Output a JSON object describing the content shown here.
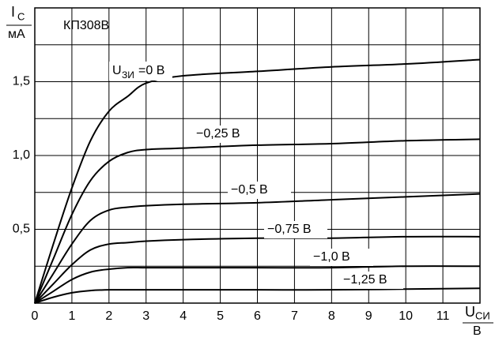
{
  "chart_data": {
    "type": "line",
    "annotation": "КП308В",
    "y_label": {
      "symbol": "I",
      "subscript": "С",
      "unit": "мА"
    },
    "x_label": {
      "symbol": "U",
      "subscript": "СИ",
      "unit": "В"
    },
    "series_label": {
      "symbol": "U",
      "subscript": "ЗИ"
    },
    "x": [
      0,
      0.5,
      1,
      1.5,
      2,
      2.5,
      3,
      4,
      6,
      8,
      10,
      12
    ],
    "series": [
      {
        "name": "=0 В",
        "color": "#000000",
        "values": [
          0,
          0.4,
          0.78,
          1.1,
          1.3,
          1.4,
          1.49,
          1.54,
          1.57,
          1.6,
          1.62,
          1.65
        ]
      },
      {
        "name": "−0,25 В",
        "color": "#000000",
        "values": [
          0,
          0.3,
          0.6,
          0.83,
          0.96,
          1.02,
          1.04,
          1.05,
          1.07,
          1.08,
          1.1,
          1.11
        ]
      },
      {
        "name": "−0,5 В",
        "color": "#000000",
        "values": [
          0,
          0.2,
          0.4,
          0.56,
          0.63,
          0.65,
          0.66,
          0.67,
          0.68,
          0.7,
          0.72,
          0.74
        ]
      },
      {
        "name": "−0,75 В",
        "color": "#000000",
        "values": [
          0,
          0.13,
          0.26,
          0.36,
          0.4,
          0.41,
          0.42,
          0.43,
          0.44,
          0.44,
          0.45,
          0.45
        ]
      },
      {
        "name": "−1,0 В",
        "color": "#000000",
        "values": [
          0,
          0.08,
          0.16,
          0.21,
          0.23,
          0.24,
          0.24,
          0.24,
          0.24,
          0.24,
          0.25,
          0.25
        ]
      },
      {
        "name": "−1,25 В",
        "color": "#000000",
        "values": [
          0,
          0.04,
          0.07,
          0.085,
          0.09,
          0.09,
          0.09,
          0.09,
          0.09,
          0.09,
          0.095,
          0.1
        ]
      }
    ],
    "xlim": [
      0,
      12
    ],
    "xticks": [
      0,
      1,
      2,
      3,
      4,
      5,
      6,
      7,
      8,
      9,
      10,
      11
    ],
    "ylim": [
      0,
      2
    ],
    "yticks": [
      {
        "value": 0.5,
        "label": "0,5"
      },
      {
        "value": 1,
        "label": "1,0"
      },
      {
        "value": 1.5,
        "label": "1,5"
      }
    ],
    "yminor": [
      0.25,
      0.75,
      1.25,
      1.75
    ],
    "grid": true
  }
}
